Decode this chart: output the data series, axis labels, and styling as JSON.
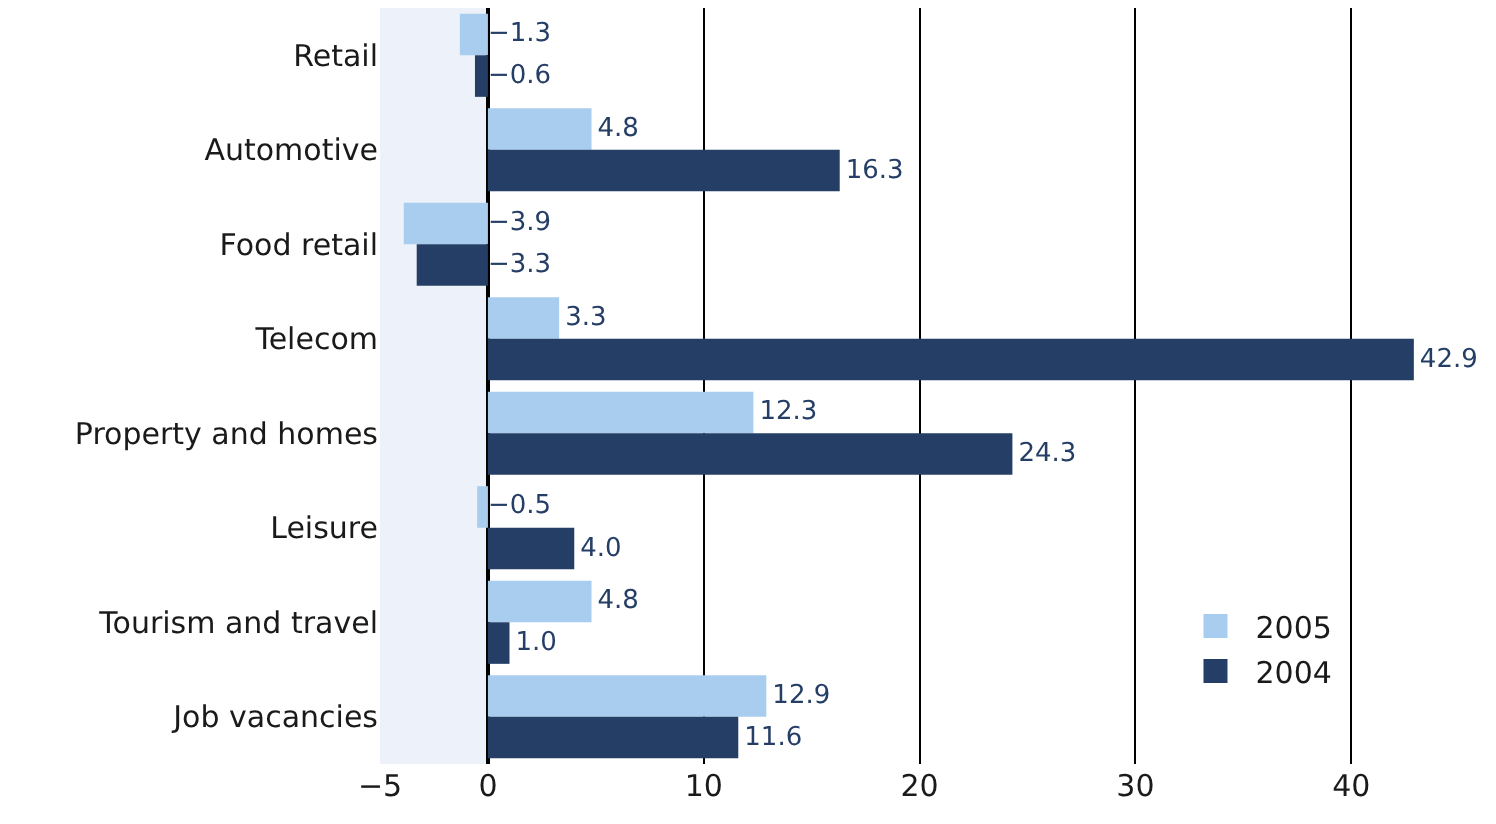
{
  "chart_data": {
    "type": "bar",
    "orientation": "horizontal",
    "categories": [
      "Retail",
      "Automotive",
      "Food retail",
      "Telecom",
      "Property and homes",
      "Leisure",
      "Tourism and travel",
      "Job vacancies"
    ],
    "series": [
      {
        "name": "2005",
        "color": "#a9cdee",
        "values": [
          -1.3,
          4.8,
          -3.9,
          3.3,
          12.3,
          -0.5,
          4.8,
          12.9
        ],
        "value_labels": [
          "−1.3",
          "4.8",
          "−3.9",
          "3.3",
          "12.3",
          "−0.5",
          "4.8",
          "12.9"
        ]
      },
      {
        "name": "2004",
        "color": "#253e66",
        "values": [
          -0.6,
          16.3,
          -3.3,
          42.9,
          24.3,
          4.0,
          1.0,
          11.6
        ],
        "value_labels": [
          "−0.6",
          "16.3",
          "−3.3",
          "42.9",
          "24.3",
          "4.0",
          "1.0",
          "11.6"
        ]
      }
    ],
    "xlim": [
      -5,
      43
    ],
    "xticks": [
      {
        "value": -5,
        "label": "−5"
      },
      0,
      10,
      20,
      30,
      40
    ],
    "bands": [
      {
        "axis": "x",
        "from": -5,
        "to": 0,
        "color": "#edf2fa"
      }
    ],
    "grid": "x",
    "legend": "bottom right"
  }
}
